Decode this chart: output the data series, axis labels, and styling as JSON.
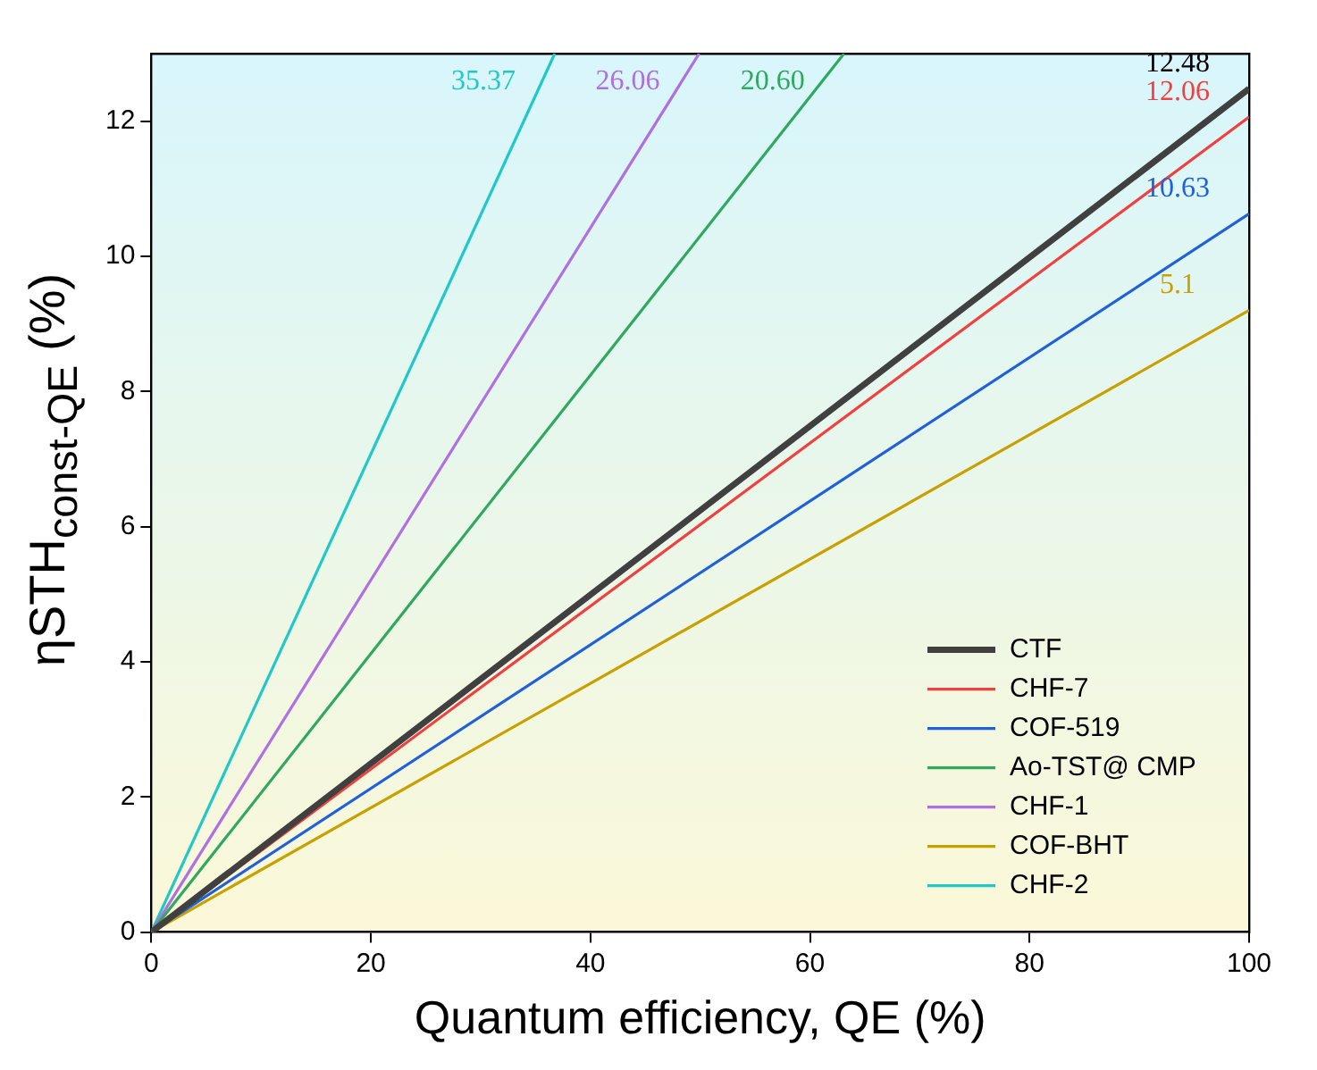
{
  "chart_data": {
    "type": "line",
    "xlabel": "Quantum efficiency, QE (%)",
    "ylabel": "ηSTH$_{const-QE}$ (%)",
    "xlim": [
      0,
      100
    ],
    "xticks": [
      0,
      20,
      40,
      60,
      80,
      100
    ],
    "ylim": [
      0,
      13
    ],
    "yticks": [
      0,
      2,
      4,
      6,
      8,
      10,
      12
    ],
    "grid": false,
    "legend": "bottom right",
    "marker": "none",
    "line_style": "solid",
    "series": [
      {
        "name": "CTF",
        "color": "#404040",
        "x": [
          0,
          100
        ],
        "values": [
          0,
          12.48
        ]
      },
      {
        "name": "CHF-7",
        "color": "#f04040",
        "x": [
          0,
          100
        ],
        "values": [
          0,
          12.06
        ]
      },
      {
        "name": "COF-519",
        "color": "#2060d8",
        "x": [
          0,
          100
        ],
        "values": [
          0,
          10.63
        ]
      },
      {
        "name": "Ao-TST@ CMP",
        "color": "#30a860",
        "x": [
          0,
          63.1
        ],
        "values": [
          0,
          13
        ]
      },
      {
        "name": "CHF-1",
        "color": "#b070e0",
        "x": [
          0,
          49.9
        ],
        "values": [
          0,
          13
        ]
      },
      {
        "name": "COF-BHT",
        "color": "#c8a000",
        "x": [
          0,
          100
        ],
        "values": [
          0,
          9.2
        ]
      },
      {
        "name": "CHF-2",
        "color": "#20c8c8",
        "x": [
          0,
          36.75
        ],
        "values": [
          0,
          13
        ]
      }
    ],
    "annotations": [
      "12.48",
      "12.06",
      "10.63",
      "20.60",
      "26.06",
      "5.1",
      "35.37"
    ]
  }
}
